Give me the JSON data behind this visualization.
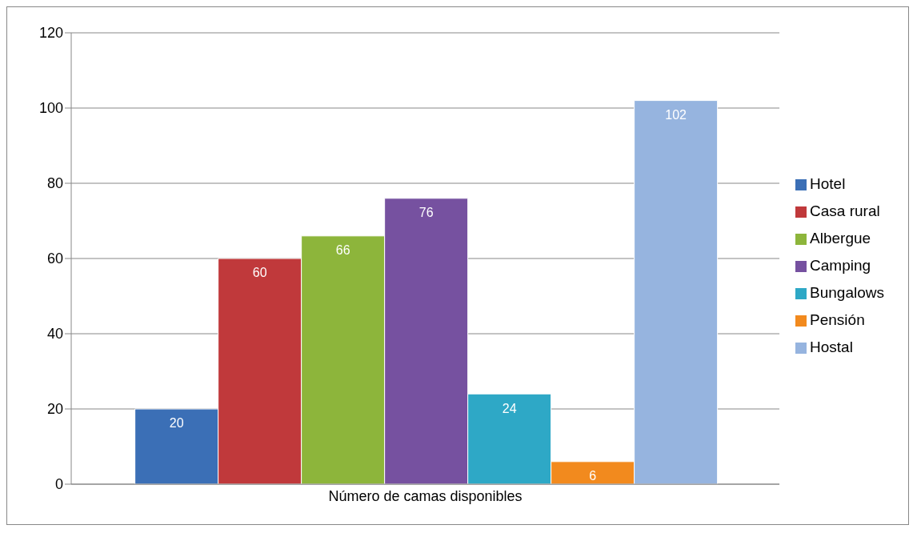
{
  "chart_data": {
    "type": "bar",
    "categories": [
      "Número de camas disponibles"
    ],
    "series": [
      {
        "name": "Hotel",
        "color": "#3b6fb6",
        "values": [
          20
        ]
      },
      {
        "name": "Casa rural",
        "color": "#c0393b",
        "values": [
          60
        ]
      },
      {
        "name": "Albergue",
        "color": "#8db53b",
        "values": [
          66
        ]
      },
      {
        "name": "Camping",
        "color": "#7651a0",
        "values": [
          76
        ]
      },
      {
        "name": "Bungalows",
        "color": "#2ea8c6",
        "values": [
          24
        ]
      },
      {
        "name": "Pensión",
        "color": "#f28a1e",
        "values": [
          6
        ]
      },
      {
        "name": "Hostal",
        "color": "#96b4df",
        "values": [
          102
        ]
      }
    ],
    "ylim": [
      0,
      120
    ],
    "yticks": [
      0,
      20,
      40,
      60,
      80,
      100,
      120
    ],
    "grid": "y",
    "legend": "right",
    "data_labels": true
  }
}
